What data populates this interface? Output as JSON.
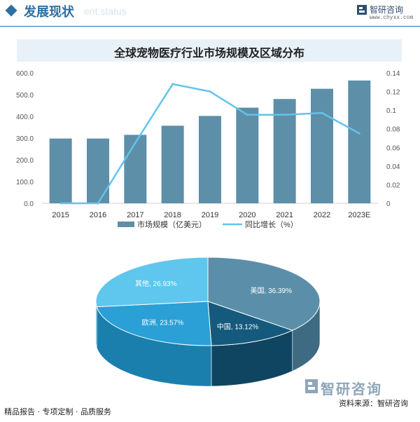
{
  "header": {
    "title": "发展现状",
    "subtitle": "ent status",
    "brand": "智研咨询",
    "url": "www.chyxx.com"
  },
  "footer": {
    "left": "精品报告 · 专项定制 · 品质服务",
    "source": "资料来源：智研咨询",
    "watermark": "智研咨询"
  },
  "colors": {
    "bar": "#5d8fa8",
    "line": "#62c4ea"
  },
  "chart_data": [
    {
      "type": "bar",
      "title": "全球宠物医疗行业市场规模及区域分布",
      "categories": [
        "2015",
        "2016",
        "2017",
        "2018",
        "2019",
        "2020",
        "2021",
        "2022",
        "2023E"
      ],
      "series": [
        {
          "name": "市场规模（亿美元）",
          "type": "bar",
          "axis": "left",
          "values": [
            298,
            298,
            315,
            357,
            402,
            440,
            480,
            527,
            565
          ]
        },
        {
          "name": "同比增长（%）",
          "type": "line",
          "axis": "right",
          "values": [
            0,
            0,
            0.065,
            0.128,
            0.12,
            0.095,
            0.095,
            0.097,
            0.075
          ]
        }
      ],
      "y_left": {
        "ylim": [
          0,
          600
        ],
        "ticks": [
          "0.0",
          "100.0",
          "200.0",
          "300.0",
          "400.0",
          "500.0",
          "600.0"
        ]
      },
      "y_right": {
        "ylim": [
          0,
          0.14
        ],
        "ticks": [
          "0",
          "0.02",
          "0.04",
          "0.06",
          "0.08",
          "0.1",
          "0.12",
          "0.14"
        ]
      },
      "legend": "bottom"
    },
    {
      "type": "pie",
      "style": "3d",
      "slices": [
        {
          "label": "美国",
          "value": 36.39,
          "text": "美国, 36.39%",
          "color": "#5b8fa9",
          "side": "#3e6b82"
        },
        {
          "label": "中国",
          "value": 13.12,
          "text": "中国, 13.12%",
          "color": "#155a7d",
          "side": "#0f4561"
        },
        {
          "label": "欧洲",
          "value": 23.57,
          "text": "欧洲, 23.57%",
          "color": "#2aa0d6",
          "side": "#1b7fae"
        },
        {
          "label": "其他",
          "value": 26.93,
          "text": "其他, 26.93%",
          "color": "#5fc6ee",
          "side": "#2f95c1"
        }
      ]
    }
  ]
}
